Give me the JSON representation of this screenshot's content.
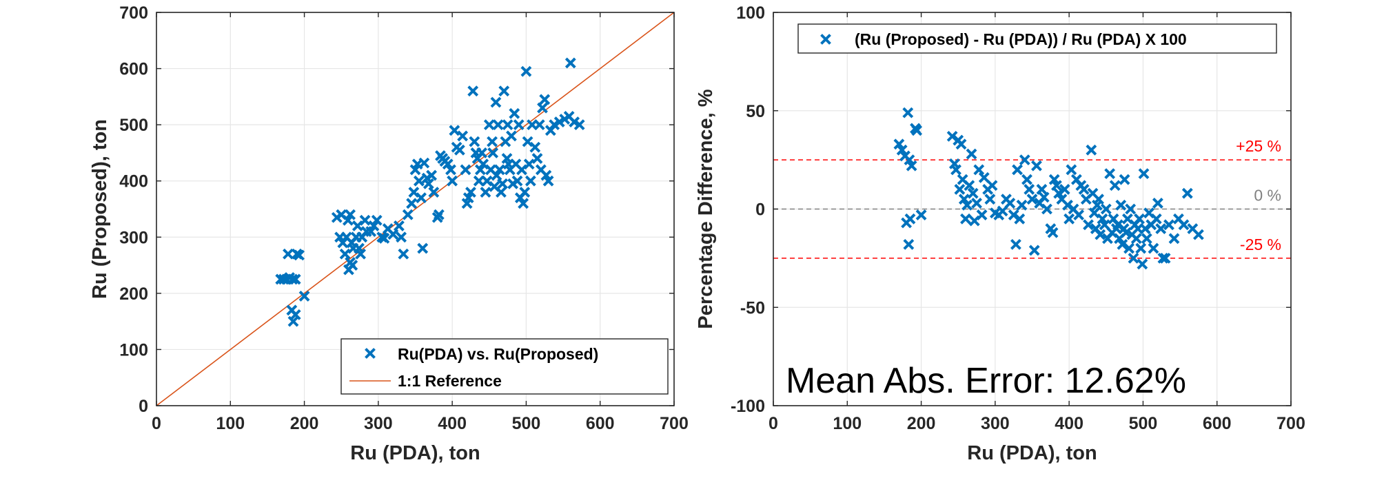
{
  "chart_data": [
    {
      "type": "scatter",
      "xlabel": "Ru (PDA), ton",
      "ylabel": "Ru (Proposed), ton",
      "xlim": [
        0,
        700
      ],
      "ylim": [
        0,
        700
      ],
      "xticks": [
        0,
        100,
        200,
        300,
        400,
        500,
        600,
        700
      ],
      "yticks": [
        0,
        100,
        200,
        300,
        400,
        500,
        600,
        700
      ],
      "grid": true,
      "legend_position": "bottom-right",
      "series": [
        {
          "name": "Ru(PDA) vs. Ru(Proposed)",
          "marker": "x",
          "color": "#0072BD",
          "points": [
            [
              168,
              225
            ],
            [
              172,
              225
            ],
            [
              176,
              225
            ],
            [
              180,
              228
            ],
            [
              184,
              225
            ],
            [
              188,
              225
            ],
            [
              178,
              270
            ],
            [
              190,
              270
            ],
            [
              193,
              268
            ],
            [
              183,
              170
            ],
            [
              185,
              150
            ],
            [
              188,
              162
            ],
            [
              200,
              195
            ],
            [
              244,
              335
            ],
            [
              248,
              300
            ],
            [
              250,
              340
            ],
            [
              252,
              290
            ],
            [
              255,
              270
            ],
            [
              257,
              300
            ],
            [
              259,
              330
            ],
            [
              262,
              340
            ],
            [
              264,
              290
            ],
            [
              266,
              280
            ],
            [
              270,
              300
            ],
            [
              272,
              320
            ],
            [
              274,
              280
            ],
            [
              276,
              270
            ],
            [
              278,
              300
            ],
            [
              282,
              330
            ],
            [
              284,
              310
            ],
            [
              260,
              242
            ],
            [
              262,
              255
            ],
            [
              265,
              250
            ],
            [
              290,
              310
            ],
            [
              294,
              320
            ],
            [
              298,
              330
            ],
            [
              305,
              300
            ],
            [
              308,
              298
            ],
            [
              313,
              315
            ],
            [
              320,
              305
            ],
            [
              328,
              320
            ],
            [
              331,
              300
            ],
            [
              334,
              270
            ],
            [
              340,
              340
            ],
            [
              345,
              360
            ],
            [
              348,
              380
            ],
            [
              350,
              420
            ],
            [
              353,
              430
            ],
            [
              355,
              400
            ],
            [
              358,
              370
            ],
            [
              360,
              280
            ],
            [
              362,
              432
            ],
            [
              366,
              405
            ],
            [
              368,
              395
            ],
            [
              372,
              410
            ],
            [
              375,
              380
            ],
            [
              380,
              335
            ],
            [
              382,
              340
            ],
            [
              384,
              445
            ],
            [
              387,
              440
            ],
            [
              390,
              435
            ],
            [
              394,
              430
            ],
            [
              398,
              420
            ],
            [
              400,
              400
            ],
            [
              403,
              490
            ],
            [
              406,
              460
            ],
            [
              410,
              455
            ],
            [
              414,
              480
            ],
            [
              418,
              420
            ],
            [
              420,
              360
            ],
            [
              422,
              370
            ],
            [
              425,
              380
            ],
            [
              428,
              560
            ],
            [
              430,
              470
            ],
            [
              432,
              450
            ],
            [
              434,
              440
            ],
            [
              436,
              400
            ],
            [
              438,
              420
            ],
            [
              440,
              450
            ],
            [
              442,
              430
            ],
            [
              445,
              380
            ],
            [
              447,
              400
            ],
            [
              450,
              500
            ],
            [
              452,
              420
            ],
            [
              454,
              470
            ],
            [
              455,
              450
            ],
            [
              457,
              390
            ],
            [
              459,
              540
            ],
            [
              460,
              410
            ],
            [
              462,
              500
            ],
            [
              464,
              420
            ],
            [
              466,
              380
            ],
            [
              468,
              395
            ],
            [
              470,
              560
            ],
            [
              472,
              470
            ],
            [
              474,
              440
            ],
            [
              475,
              500
            ],
            [
              476,
              430
            ],
            [
              478,
              420
            ],
            [
              480,
              480
            ],
            [
              482,
              395
            ],
            [
              484,
              520
            ],
            [
              486,
              430
            ],
            [
              488,
              400
            ],
            [
              490,
              500
            ],
            [
              492,
              370
            ],
            [
              494,
              420
            ],
            [
              496,
              360
            ],
            [
              498,
              380
            ],
            [
              500,
              595
            ],
            [
              502,
              470
            ],
            [
              504,
              430
            ],
            [
              506,
              400
            ],
            [
              508,
              500
            ],
            [
              512,
              460
            ],
            [
              515,
              440
            ],
            [
              518,
              500
            ],
            [
              520,
              420
            ],
            [
              522,
              530
            ],
            [
              525,
              545
            ],
            [
              527,
              410
            ],
            [
              530,
              400
            ],
            [
              533,
              490
            ],
            [
              538,
              500
            ],
            [
              545,
              505
            ],
            [
              552,
              510
            ],
            [
              558,
              515
            ],
            [
              560,
              610
            ],
            [
              565,
              505
            ],
            [
              572,
              500
            ]
          ]
        },
        {
          "name": "1:1 Reference",
          "line": true,
          "color": "#D95319",
          "x": [
            0,
            700
          ],
          "y": [
            0,
            700
          ]
        }
      ]
    },
    {
      "type": "scatter",
      "xlabel": "Ru (PDA), ton",
      "ylabel": "Percentage Difference, %",
      "xlim": [
        0,
        700
      ],
      "ylim": [
        -100,
        100
      ],
      "xticks": [
        0,
        100,
        200,
        300,
        400,
        500,
        600,
        700
      ],
      "yticks": [
        -100,
        -50,
        0,
        50,
        100
      ],
      "grid": true,
      "legend_position": "top-right",
      "annotation": "Mean Abs. Error: 12.62%",
      "reference_lines": [
        {
          "y": 25,
          "label": "+25 %",
          "color": "#FF0000"
        },
        {
          "y": 0,
          "label": "0 %",
          "color": "#808080"
        },
        {
          "y": -25,
          "label": "-25 %",
          "color": "#FF0000"
        }
      ],
      "series": [
        {
          "name": "(Ru (Proposed) - Ru (PDA)) / Ru (PDA) X 100",
          "marker": "x",
          "color": "#0072BD",
          "points": [
            [
              170,
              33
            ],
            [
              174,
              30
            ],
            [
              178,
              27
            ],
            [
              182,
              49
            ],
            [
              184,
              25
            ],
            [
              187,
              22
            ],
            [
              192,
              41
            ],
            [
              194,
              40
            ],
            [
              180,
              -7
            ],
            [
              185,
              -5
            ],
            [
              183,
              -18
            ],
            [
              200,
              -3
            ],
            [
              242,
              37
            ],
            [
              245,
              23
            ],
            [
              247,
              20
            ],
            [
              250,
              35
            ],
            [
              252,
              10
            ],
            [
              254,
              33
            ],
            [
              256,
              15
            ],
            [
              258,
              5
            ],
            [
              260,
              -5
            ],
            [
              262,
              2
            ],
            [
              265,
              12
            ],
            [
              268,
              28
            ],
            [
              270,
              8
            ],
            [
              272,
              -6
            ],
            [
              275,
              3
            ],
            [
              278,
              20
            ],
            [
              282,
              -3
            ],
            [
              285,
              16
            ],
            [
              290,
              10
            ],
            [
              293,
              5
            ],
            [
              296,
              12
            ],
            [
              300,
              -2
            ],
            [
              305,
              -3
            ],
            [
              310,
              -1
            ],
            [
              315,
              5
            ],
            [
              320,
              3
            ],
            [
              325,
              -3
            ],
            [
              328,
              -18
            ],
            [
              330,
              20
            ],
            [
              333,
              -5
            ],
            [
              336,
              2
            ],
            [
              340,
              25
            ],
            [
              343,
              15
            ],
            [
              346,
              10
            ],
            [
              350,
              5
            ],
            [
              353,
              -21
            ],
            [
              356,
              22
            ],
            [
              360,
              3
            ],
            [
              363,
              10
            ],
            [
              366,
              6
            ],
            [
              370,
              0
            ],
            [
              375,
              -10
            ],
            [
              378,
              -12
            ],
            [
              380,
              15
            ],
            [
              383,
              12
            ],
            [
              386,
              8
            ],
            [
              390,
              5
            ],
            [
              394,
              10
            ],
            [
              398,
              2
            ],
            [
              400,
              -5
            ],
            [
              403,
              20
            ],
            [
              406,
              0
            ],
            [
              410,
              15
            ],
            [
              413,
              -3
            ],
            [
              416,
              12
            ],
            [
              420,
              10
            ],
            [
              423,
              5
            ],
            [
              426,
              -8
            ],
            [
              430,
              30
            ],
            [
              432,
              8
            ],
            [
              434,
              -2
            ],
            [
              436,
              -10
            ],
            [
              438,
              2
            ],
            [
              440,
              5
            ],
            [
              442,
              -13
            ],
            [
              445,
              -5
            ],
            [
              448,
              -8
            ],
            [
              450,
              0
            ],
            [
              452,
              -15
            ],
            [
              455,
              18
            ],
            [
              458,
              -12
            ],
            [
              460,
              -5
            ],
            [
              462,
              12
            ],
            [
              464,
              -10
            ],
            [
              466,
              -8
            ],
            [
              468,
              -15
            ],
            [
              470,
              2
            ],
            [
              472,
              -18
            ],
            [
              474,
              -10
            ],
            [
              475,
              15
            ],
            [
              477,
              -12
            ],
            [
              479,
              -5
            ],
            [
              481,
              -20
            ],
            [
              483,
              0
            ],
            [
              485,
              -13
            ],
            [
              487,
              -25
            ],
            [
              489,
              -8
            ],
            [
              491,
              -15
            ],
            [
              493,
              -10
            ],
            [
              495,
              -5
            ],
            [
              497,
              -20
            ],
            [
              499,
              -28
            ],
            [
              501,
              18
            ],
            [
              503,
              -10
            ],
            [
              505,
              -15
            ],
            [
              508,
              -2
            ],
            [
              511,
              -8
            ],
            [
              514,
              -20
            ],
            [
              518,
              -5
            ],
            [
              520,
              3
            ],
            [
              524,
              -10
            ],
            [
              527,
              -25
            ],
            [
              530,
              -25
            ],
            [
              535,
              -8
            ],
            [
              542,
              -15
            ],
            [
              548,
              -5
            ],
            [
              555,
              -8
            ],
            [
              560,
              8
            ],
            [
              567,
              -10
            ],
            [
              575,
              -13
            ]
          ]
        }
      ]
    }
  ]
}
